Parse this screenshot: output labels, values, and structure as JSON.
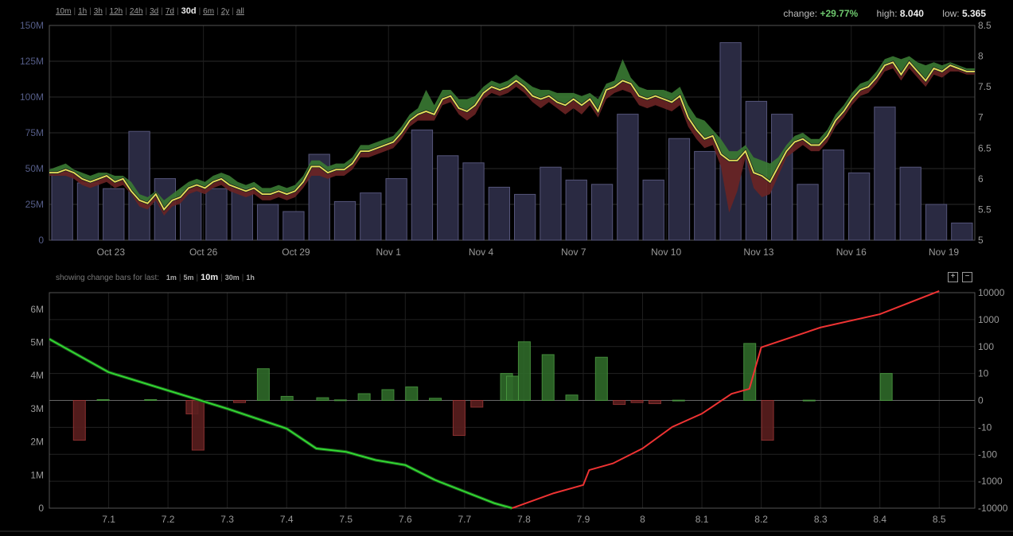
{
  "ranges": [
    {
      "label": "10m",
      "active": false
    },
    {
      "label": "1h",
      "active": false
    },
    {
      "label": "3h",
      "active": false
    },
    {
      "label": "12h",
      "active": false
    },
    {
      "label": "24h",
      "active": false
    },
    {
      "label": "3d",
      "active": false
    },
    {
      "label": "7d",
      "active": false
    },
    {
      "label": "30d",
      "active": true
    },
    {
      "label": "6m",
      "active": false
    },
    {
      "label": "2y",
      "active": false
    },
    {
      "label": "all",
      "active": false
    }
  ],
  "stats": {
    "change_label": "change:",
    "change_value": "+29.77%",
    "high_label": "high:",
    "high_value": "8.040",
    "low_label": "low:",
    "low_value": "5.365"
  },
  "change_bars": {
    "prefix": "showing change bars for last:",
    "options": [
      {
        "label": "1m",
        "active": false
      },
      {
        "label": "5m",
        "active": false
      },
      {
        "label": "10m",
        "active": true
      },
      {
        "label": "30m",
        "active": false
      },
      {
        "label": "1h",
        "active": false
      }
    ]
  },
  "zoom": {
    "plus": "+",
    "minus": "−"
  },
  "colors": {
    "up": "#3a7a33",
    "down": "#6a2424",
    "price_line": "#e8e25a",
    "volume_bar": "#2a2a42",
    "bid": "#33dd33",
    "ask": "#ee3333"
  },
  "chart_data": [
    {
      "type": "bar+line",
      "name": "price_volume",
      "x_ticks": [
        "Oct 23",
        "Oct 26",
        "Oct 29",
        "Nov 1",
        "Nov 4",
        "Nov 7",
        "Nov 10",
        "Nov 13",
        "Nov 16",
        "Nov 19"
      ],
      "y_left_ticks": [
        "150M",
        "125M",
        "100M",
        "75M",
        "50M",
        "25M",
        "0"
      ],
      "y_right_ticks": [
        "8.5",
        "8",
        "7.5",
        "7",
        "6.5",
        "6",
        "5.5",
        "5"
      ],
      "volume_ylim": [
        0,
        150
      ],
      "price_ylim": [
        5,
        8.5
      ],
      "volume_millions": [
        47,
        40,
        36,
        76,
        43,
        35,
        36,
        37,
        25,
        20,
        60,
        27,
        33,
        43,
        77,
        59,
        54,
        37,
        32,
        51,
        42,
        39,
        88,
        42,
        71,
        62,
        138,
        97,
        88,
        39,
        63,
        47,
        93,
        51,
        25,
        12
      ],
      "price": [
        6.1,
        6.1,
        6.15,
        6.1,
        6.0,
        5.95,
        6.0,
        6.05,
        5.95,
        6.0,
        5.8,
        5.65,
        5.6,
        5.75,
        5.5,
        5.65,
        5.7,
        5.85,
        5.9,
        5.85,
        5.95,
        6.0,
        5.9,
        5.85,
        5.8,
        5.85,
        5.75,
        5.75,
        5.8,
        5.75,
        5.8,
        5.95,
        6.2,
        6.2,
        6.1,
        6.15,
        6.15,
        6.25,
        6.45,
        6.45,
        6.5,
        6.55,
        6.6,
        6.75,
        6.95,
        7.05,
        7.1,
        7.05,
        7.3,
        7.35,
        7.15,
        7.1,
        7.2,
        7.4,
        7.5,
        7.45,
        7.5,
        7.6,
        7.5,
        7.35,
        7.3,
        7.35,
        7.25,
        7.2,
        7.3,
        7.2,
        7.3,
        7.1,
        7.45,
        7.5,
        7.6,
        7.55,
        7.35,
        7.3,
        7.35,
        7.3,
        7.25,
        7.35,
        7.0,
        6.8,
        6.65,
        6.7,
        6.4,
        6.3,
        6.3,
        6.45,
        6.1,
        6.05,
        5.95,
        6.2,
        6.45,
        6.6,
        6.65,
        6.55,
        6.55,
        6.7,
        6.95,
        7.1,
        7.3,
        7.45,
        7.5,
        7.65,
        7.85,
        7.9,
        7.7,
        7.9,
        7.75,
        7.6,
        7.8,
        7.75,
        7.85,
        7.8,
        7.75,
        7.75
      ],
      "high": [
        6.15,
        6.2,
        6.25,
        6.15,
        6.1,
        6.05,
        6.1,
        6.1,
        6.05,
        6.05,
        5.95,
        5.75,
        5.7,
        5.8,
        5.65,
        5.75,
        5.85,
        5.95,
        6.0,
        5.95,
        6.05,
        6.1,
        6.05,
        5.95,
        5.9,
        5.95,
        5.85,
        5.85,
        5.9,
        5.85,
        5.9,
        6.05,
        6.3,
        6.3,
        6.2,
        6.25,
        6.25,
        6.35,
        6.55,
        6.55,
        6.6,
        6.65,
        6.7,
        6.85,
        7.05,
        7.15,
        7.45,
        7.2,
        7.45,
        7.45,
        7.3,
        7.3,
        7.35,
        7.5,
        7.6,
        7.55,
        7.6,
        7.7,
        7.6,
        7.5,
        7.45,
        7.45,
        7.4,
        7.4,
        7.4,
        7.35,
        7.4,
        7.3,
        7.55,
        7.6,
        7.95,
        7.65,
        7.5,
        7.45,
        7.45,
        7.45,
        7.4,
        7.5,
        7.2,
        7.0,
        6.95,
        6.8,
        6.65,
        6.45,
        6.45,
        6.55,
        6.35,
        6.3,
        6.25,
        6.35,
        6.55,
        6.7,
        6.75,
        6.65,
        6.65,
        6.8,
        7.05,
        7.2,
        7.4,
        7.55,
        7.6,
        7.75,
        7.95,
        8.0,
        7.95,
        8.0,
        7.9,
        7.85,
        7.9,
        7.85,
        7.9,
        7.85,
        7.8,
        7.8
      ],
      "low": [
        6.05,
        6.05,
        6.05,
        6.0,
        5.9,
        5.85,
        5.9,
        5.95,
        5.85,
        5.9,
        5.75,
        5.55,
        5.5,
        5.65,
        5.4,
        5.55,
        5.6,
        5.75,
        5.8,
        5.75,
        5.85,
        5.9,
        5.8,
        5.75,
        5.7,
        5.75,
        5.65,
        5.65,
        5.7,
        5.65,
        5.7,
        5.85,
        6.05,
        6.05,
        6.0,
        6.05,
        6.05,
        6.15,
        6.35,
        6.35,
        6.4,
        6.45,
        6.5,
        6.65,
        6.85,
        6.95,
        6.95,
        6.95,
        7.2,
        7.25,
        7.05,
        6.95,
        7.05,
        7.3,
        7.4,
        7.35,
        7.4,
        7.5,
        7.4,
        7.25,
        7.15,
        7.25,
        7.15,
        7.05,
        7.15,
        7.05,
        7.2,
        7.0,
        7.3,
        7.4,
        7.45,
        7.4,
        7.2,
        7.15,
        7.2,
        7.15,
        7.1,
        7.2,
        6.85,
        6.65,
        6.5,
        6.55,
        6.2,
        5.45,
        5.8,
        6.35,
        5.85,
        5.7,
        5.75,
        6.05,
        6.35,
        6.45,
        6.55,
        6.45,
        6.45,
        6.6,
        6.85,
        7.0,
        7.2,
        7.35,
        7.4,
        7.55,
        7.75,
        7.8,
        7.6,
        7.8,
        7.65,
        7.5,
        7.7,
        7.65,
        7.75,
        7.75,
        7.7,
        7.7
      ]
    },
    {
      "type": "depth",
      "name": "order_book",
      "x_ticks": [
        "7.1",
        "7.2",
        "7.3",
        "7.4",
        "7.5",
        "7.6",
        "7.7",
        "7.8",
        "7.9",
        "8",
        "8.1",
        "8.2",
        "8.3",
        "8.4",
        "8.5"
      ],
      "x_range": [
        7.0,
        8.56
      ],
      "y_left_ticks": [
        "6M",
        "5M",
        "4M",
        "3M",
        "2M",
        "1M",
        "0"
      ],
      "y_right_ticks": [
        "10000",
        "1000",
        "100",
        "10",
        "0",
        "-10",
        "-100",
        "-1000",
        "-10000"
      ],
      "y_left_range": [
        0,
        6.5
      ],
      "bid_depth": [
        [
          7.0,
          5.1
        ],
        [
          7.1,
          4.1
        ],
        [
          7.2,
          3.55
        ],
        [
          7.3,
          3.0
        ],
        [
          7.35,
          2.7
        ],
        [
          7.4,
          2.4
        ],
        [
          7.45,
          1.8
        ],
        [
          7.5,
          1.7
        ],
        [
          7.55,
          1.45
        ],
        [
          7.6,
          1.3
        ],
        [
          7.65,
          0.85
        ],
        [
          7.7,
          0.5
        ],
        [
          7.75,
          0.15
        ],
        [
          7.78,
          0.0
        ]
      ],
      "ask_depth": [
        [
          7.78,
          0.0
        ],
        [
          7.85,
          0.45
        ],
        [
          7.9,
          0.7
        ],
        [
          7.91,
          1.15
        ],
        [
          7.95,
          1.35
        ],
        [
          8.0,
          1.8
        ],
        [
          8.05,
          2.45
        ],
        [
          8.1,
          2.85
        ],
        [
          8.15,
          3.45
        ],
        [
          8.18,
          3.6
        ],
        [
          8.2,
          4.85
        ],
        [
          8.3,
          5.45
        ],
        [
          8.4,
          5.85
        ],
        [
          8.5,
          6.55
        ]
      ],
      "change_bars": [
        [
          7.05,
          -30
        ],
        [
          7.09,
          0.3
        ],
        [
          7.17,
          0.3
        ],
        [
          7.24,
          -5
        ],
        [
          7.25,
          -70
        ],
        [
          7.32,
          -0.8
        ],
        [
          7.36,
          15
        ],
        [
          7.4,
          1.5
        ],
        [
          7.46,
          1
        ],
        [
          7.49,
          0.2
        ],
        [
          7.53,
          2.5
        ],
        [
          7.57,
          4
        ],
        [
          7.61,
          5
        ],
        [
          7.65,
          0.8
        ],
        [
          7.69,
          -20
        ],
        [
          7.72,
          -2.5
        ],
        [
          7.77,
          10
        ],
        [
          7.8,
          150
        ],
        [
          7.78,
          9
        ],
        [
          7.84,
          50
        ],
        [
          7.88,
          2
        ],
        [
          7.93,
          40
        ],
        [
          7.96,
          -1.5
        ],
        [
          7.99,
          -0.8
        ],
        [
          8.02,
          -1.2
        ],
        [
          8.06,
          0.1
        ],
        [
          8.18,
          130
        ],
        [
          8.21,
          -30
        ],
        [
          8.28,
          0.1
        ],
        [
          8.41,
          10
        ]
      ]
    }
  ]
}
